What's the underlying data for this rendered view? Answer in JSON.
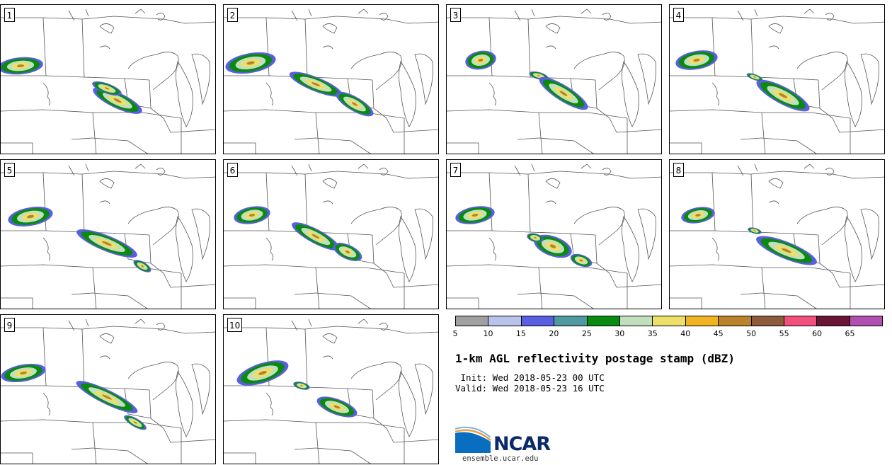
{
  "panels": [
    {
      "label": "1"
    },
    {
      "label": "2"
    },
    {
      "label": "3"
    },
    {
      "label": "4"
    },
    {
      "label": "5"
    },
    {
      "label": "6"
    },
    {
      "label": "7"
    },
    {
      "label": "8"
    },
    {
      "label": "9"
    },
    {
      "label": "10"
    }
  ],
  "colorbar": {
    "colors": [
      "#a0a0a0",
      "#b9c3ea",
      "#5a5ee0",
      "#4f9aa0",
      "#0a8a10",
      "#c1dfbd",
      "#ece06a",
      "#f0b420",
      "#b9832c",
      "#8e5a3c",
      "#f2507c",
      "#6a1535",
      "#b050b0"
    ],
    "tick_labels": [
      "5",
      "10",
      "15",
      "20",
      "25",
      "30",
      "35",
      "40",
      "45",
      "50",
      "55",
      "60",
      "65"
    ]
  },
  "title": "1-km AGL reflectivity postage stamp (dBZ)",
  "init_text": " Init: Wed 2018-05-23 00 UTC",
  "valid_text": "Valid: Wed 2018-05-23 16 UTC",
  "logo": {
    "name": "ncar-logo",
    "text": "NCAR",
    "url": "ensemble.ucar.edu"
  }
}
